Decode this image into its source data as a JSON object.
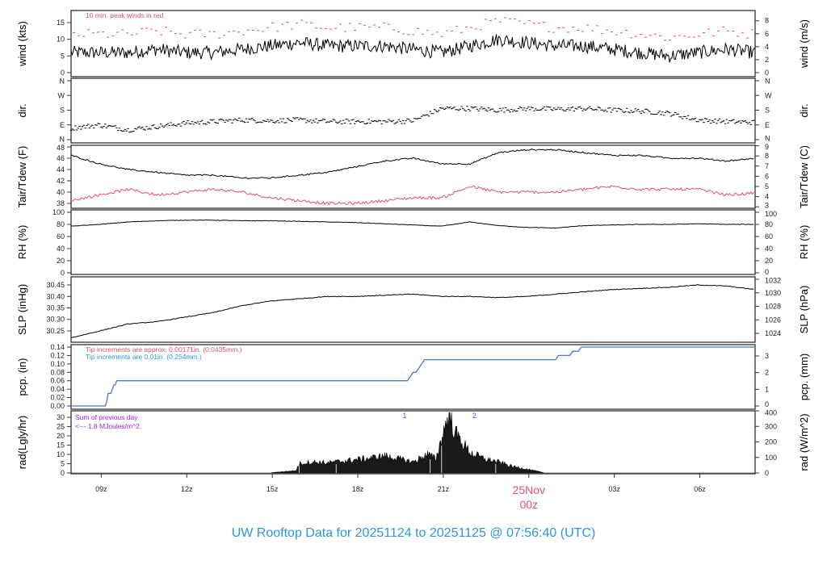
{
  "title": "UW Rooftop Data for 20251124  to  20251125 @ 07:56:40  (UTC)",
  "colors": {
    "title": "#2a97e0",
    "gust": "#e0506e",
    "dew": "#e0506e",
    "pcp": "#4a78c8",
    "note_red": "#e0506e",
    "note_blue": "#2a97e0",
    "purple": "#a020f0",
    "date": "#e0506e"
  },
  "chart_data": {
    "type": "line",
    "x_unit": "hours since 20251124 07:56:40 UTC",
    "xlim": [
      0,
      24
    ],
    "x_ticks": [
      {
        "t": 1.06,
        "label": "09z"
      },
      {
        "t": 4.06,
        "label": "12z"
      },
      {
        "t": 7.06,
        "label": "15z"
      },
      {
        "t": 10.06,
        "label": "18z"
      },
      {
        "t": 13.06,
        "label": "21z"
      },
      {
        "t": 16.06,
        "label": "00z"
      },
      {
        "t": 19.06,
        "label": "03z"
      },
      {
        "t": 22.06,
        "label": "06z"
      }
    ],
    "date_marker": {
      "t": 16.06,
      "line1": "25Nov",
      "line2": "00z"
    },
    "panels": [
      {
        "id": "wind",
        "ylabel": "wind (kts)",
        "ylabel_right": "wind (m/s)",
        "ylim": [
          0,
          17
        ],
        "left_ticks": [
          "0",
          "5",
          "10",
          "15"
        ],
        "right_ticks": [
          "0",
          "2",
          "4",
          "6",
          "8"
        ],
        "note": "10 min. peak winds in red",
        "hourly_speed": [
          6,
          6,
          6,
          7,
          6,
          6,
          7,
          8,
          9,
          8,
          8,
          8,
          7,
          6,
          8,
          10,
          9,
          8,
          8,
          7,
          6,
          5,
          6,
          7,
          6
        ],
        "gust_offset": 4
      },
      {
        "id": "dir",
        "ylabel": "dir.",
        "ylabel_right": "dir.",
        "ylim": [
          0,
          360
        ],
        "left_ticks": [
          "N",
          "E",
          "S",
          "W",
          "N"
        ],
        "right_ticks": [
          "N",
          "E",
          "S",
          "W",
          "N"
        ],
        "hourly_deg": [
          70,
          90,
          60,
          80,
          100,
          110,
          120,
          115,
          120,
          110,
          110,
          110,
          115,
          190,
          190,
          180,
          190,
          185,
          190,
          180,
          175,
          160,
          120,
          110,
          105
        ]
      },
      {
        "id": "temp",
        "ylabel": "Tair/Tdew (F)",
        "ylabel_right": "Tair/Tdew (C)",
        "ylim": [
          37.5,
          48.5
        ],
        "left_ticks": [
          "38",
          "40",
          "42",
          "44",
          "46",
          "48"
        ],
        "right_ticks": [
          "3",
          "4",
          "5",
          "6",
          "7",
          "8",
          "9"
        ],
        "hourly_tair": [
          46.5,
          45,
          44,
          43.5,
          43,
          43,
          42.5,
          42.5,
          43,
          43.5,
          44.5,
          45.5,
          46,
          45,
          45,
          47,
          47.5,
          47.5,
          47,
          46.5,
          46.5,
          46,
          46,
          45.5,
          46
        ],
        "hourly_tdew": [
          38.5,
          39.5,
          40.5,
          39.5,
          40,
          40.5,
          40,
          39,
          38.5,
          38,
          38,
          38.5,
          39,
          39,
          41,
          40,
          40,
          40,
          40.5,
          41,
          40.5,
          40.5,
          40.5,
          39.5,
          39.8
        ]
      },
      {
        "id": "rh",
        "ylabel": "RH (%)",
        "ylabel_right": "RH (%)",
        "ylim": [
          0,
          100
        ],
        "left_ticks": [
          "0",
          "20",
          "40",
          "60",
          "80",
          "100"
        ],
        "right_ticks": [
          "0",
          "20",
          "40",
          "60",
          "80",
          "100"
        ],
        "hourly_rh": [
          77,
          80,
          84,
          86,
          87,
          87,
          86,
          86,
          85,
          84,
          83,
          81,
          79,
          77,
          84,
          78,
          75,
          74,
          78,
          79,
          80,
          80,
          81,
          80,
          80
        ]
      },
      {
        "id": "slp",
        "ylabel": "SLP (inHg)",
        "ylabel_right": "SLP (hPa)",
        "ylim": [
          30.21,
          30.47
        ],
        "left_ticks": [
          "30.25",
          "30.30",
          "30.35",
          "30.40",
          "30.45"
        ],
        "right_ticks": [
          "1024",
          "1026",
          "1028",
          "1030",
          "1032"
        ],
        "hourly_slp": [
          30.22,
          30.25,
          30.28,
          30.29,
          30.31,
          30.33,
          30.36,
          30.38,
          30.39,
          30.4,
          30.4,
          30.405,
          30.41,
          30.4,
          30.4,
          30.395,
          30.4,
          30.41,
          30.42,
          30.43,
          30.435,
          30.44,
          30.45,
          30.445,
          30.43
        ]
      },
      {
        "id": "pcp",
        "ylabel": "pcp. (in)",
        "ylabel_right": "pcp. (mm)",
        "ylim": [
          0,
          0.145
        ],
        "left_ticks": [
          "0.00",
          "0.02",
          "0.04",
          "0.06",
          "0.08",
          "0.10",
          "0.12",
          "0.14"
        ],
        "right_ticks": [
          "0",
          "1",
          "2",
          "3"
        ],
        "note_red": "Tip increments are approx. 0.00171in. (0.0435mm.)",
        "note_blue": "Tip increments are 0.01in. (0.254mm.)",
        "cumulative": [
          [
            0,
            0
          ],
          [
            1.2,
            0
          ],
          [
            1.25,
            0.01
          ],
          [
            1.3,
            0.03
          ],
          [
            1.4,
            0.03
          ],
          [
            1.45,
            0.04
          ],
          [
            1.5,
            0.05
          ],
          [
            1.55,
            0.05
          ],
          [
            1.6,
            0.06
          ],
          [
            11.8,
            0.06
          ],
          [
            11.9,
            0.07
          ],
          [
            12.0,
            0.08
          ],
          [
            12.1,
            0.08
          ],
          [
            12.2,
            0.09
          ],
          [
            12.3,
            0.1
          ],
          [
            12.4,
            0.11
          ],
          [
            17.0,
            0.11
          ],
          [
            17.1,
            0.12
          ],
          [
            17.5,
            0.12
          ],
          [
            17.6,
            0.13
          ],
          [
            17.8,
            0.13
          ],
          [
            17.9,
            0.14
          ],
          [
            24,
            0.14
          ]
        ]
      },
      {
        "id": "rad",
        "ylabel": "rad(Lgly/hr)",
        "ylabel_right": "rad (W/m^2)",
        "ylim": [
          0,
          400
        ],
        "left_ticks": [
          "0",
          "5",
          "10",
          "15",
          "20",
          "25",
          "30"
        ],
        "right_ticks": [
          "0",
          "100",
          "200",
          "300",
          "400"
        ],
        "note_line1": "Sum of previous day",
        "note_line2": "<--- 1.8 MJoules/m^2",
        "markers": [
          {
            "t": 11.7,
            "label": "1"
          },
          {
            "t": 14.15,
            "label": "2"
          }
        ],
        "points_wm2": [
          [
            0,
            0
          ],
          [
            7.0,
            0
          ],
          [
            7.2,
            5
          ],
          [
            7.9,
            15
          ],
          [
            8.0,
            60
          ],
          [
            8.5,
            70
          ],
          [
            9,
            65
          ],
          [
            9.5,
            75
          ],
          [
            10,
            85
          ],
          [
            10.5,
            95
          ],
          [
            11,
            110
          ],
          [
            11.5,
            90
          ],
          [
            12,
            70
          ],
          [
            12.5,
            120
          ],
          [
            12.8,
            90
          ],
          [
            13.0,
            220
          ],
          [
            13.25,
            380
          ],
          [
            13.5,
            250
          ],
          [
            14,
            130
          ],
          [
            14.5,
            90
          ],
          [
            15,
            70
          ],
          [
            15.5,
            40
          ],
          [
            16,
            25
          ],
          [
            16.5,
            5
          ],
          [
            16.6,
            0
          ],
          [
            24,
            0
          ]
        ]
      }
    ]
  }
}
